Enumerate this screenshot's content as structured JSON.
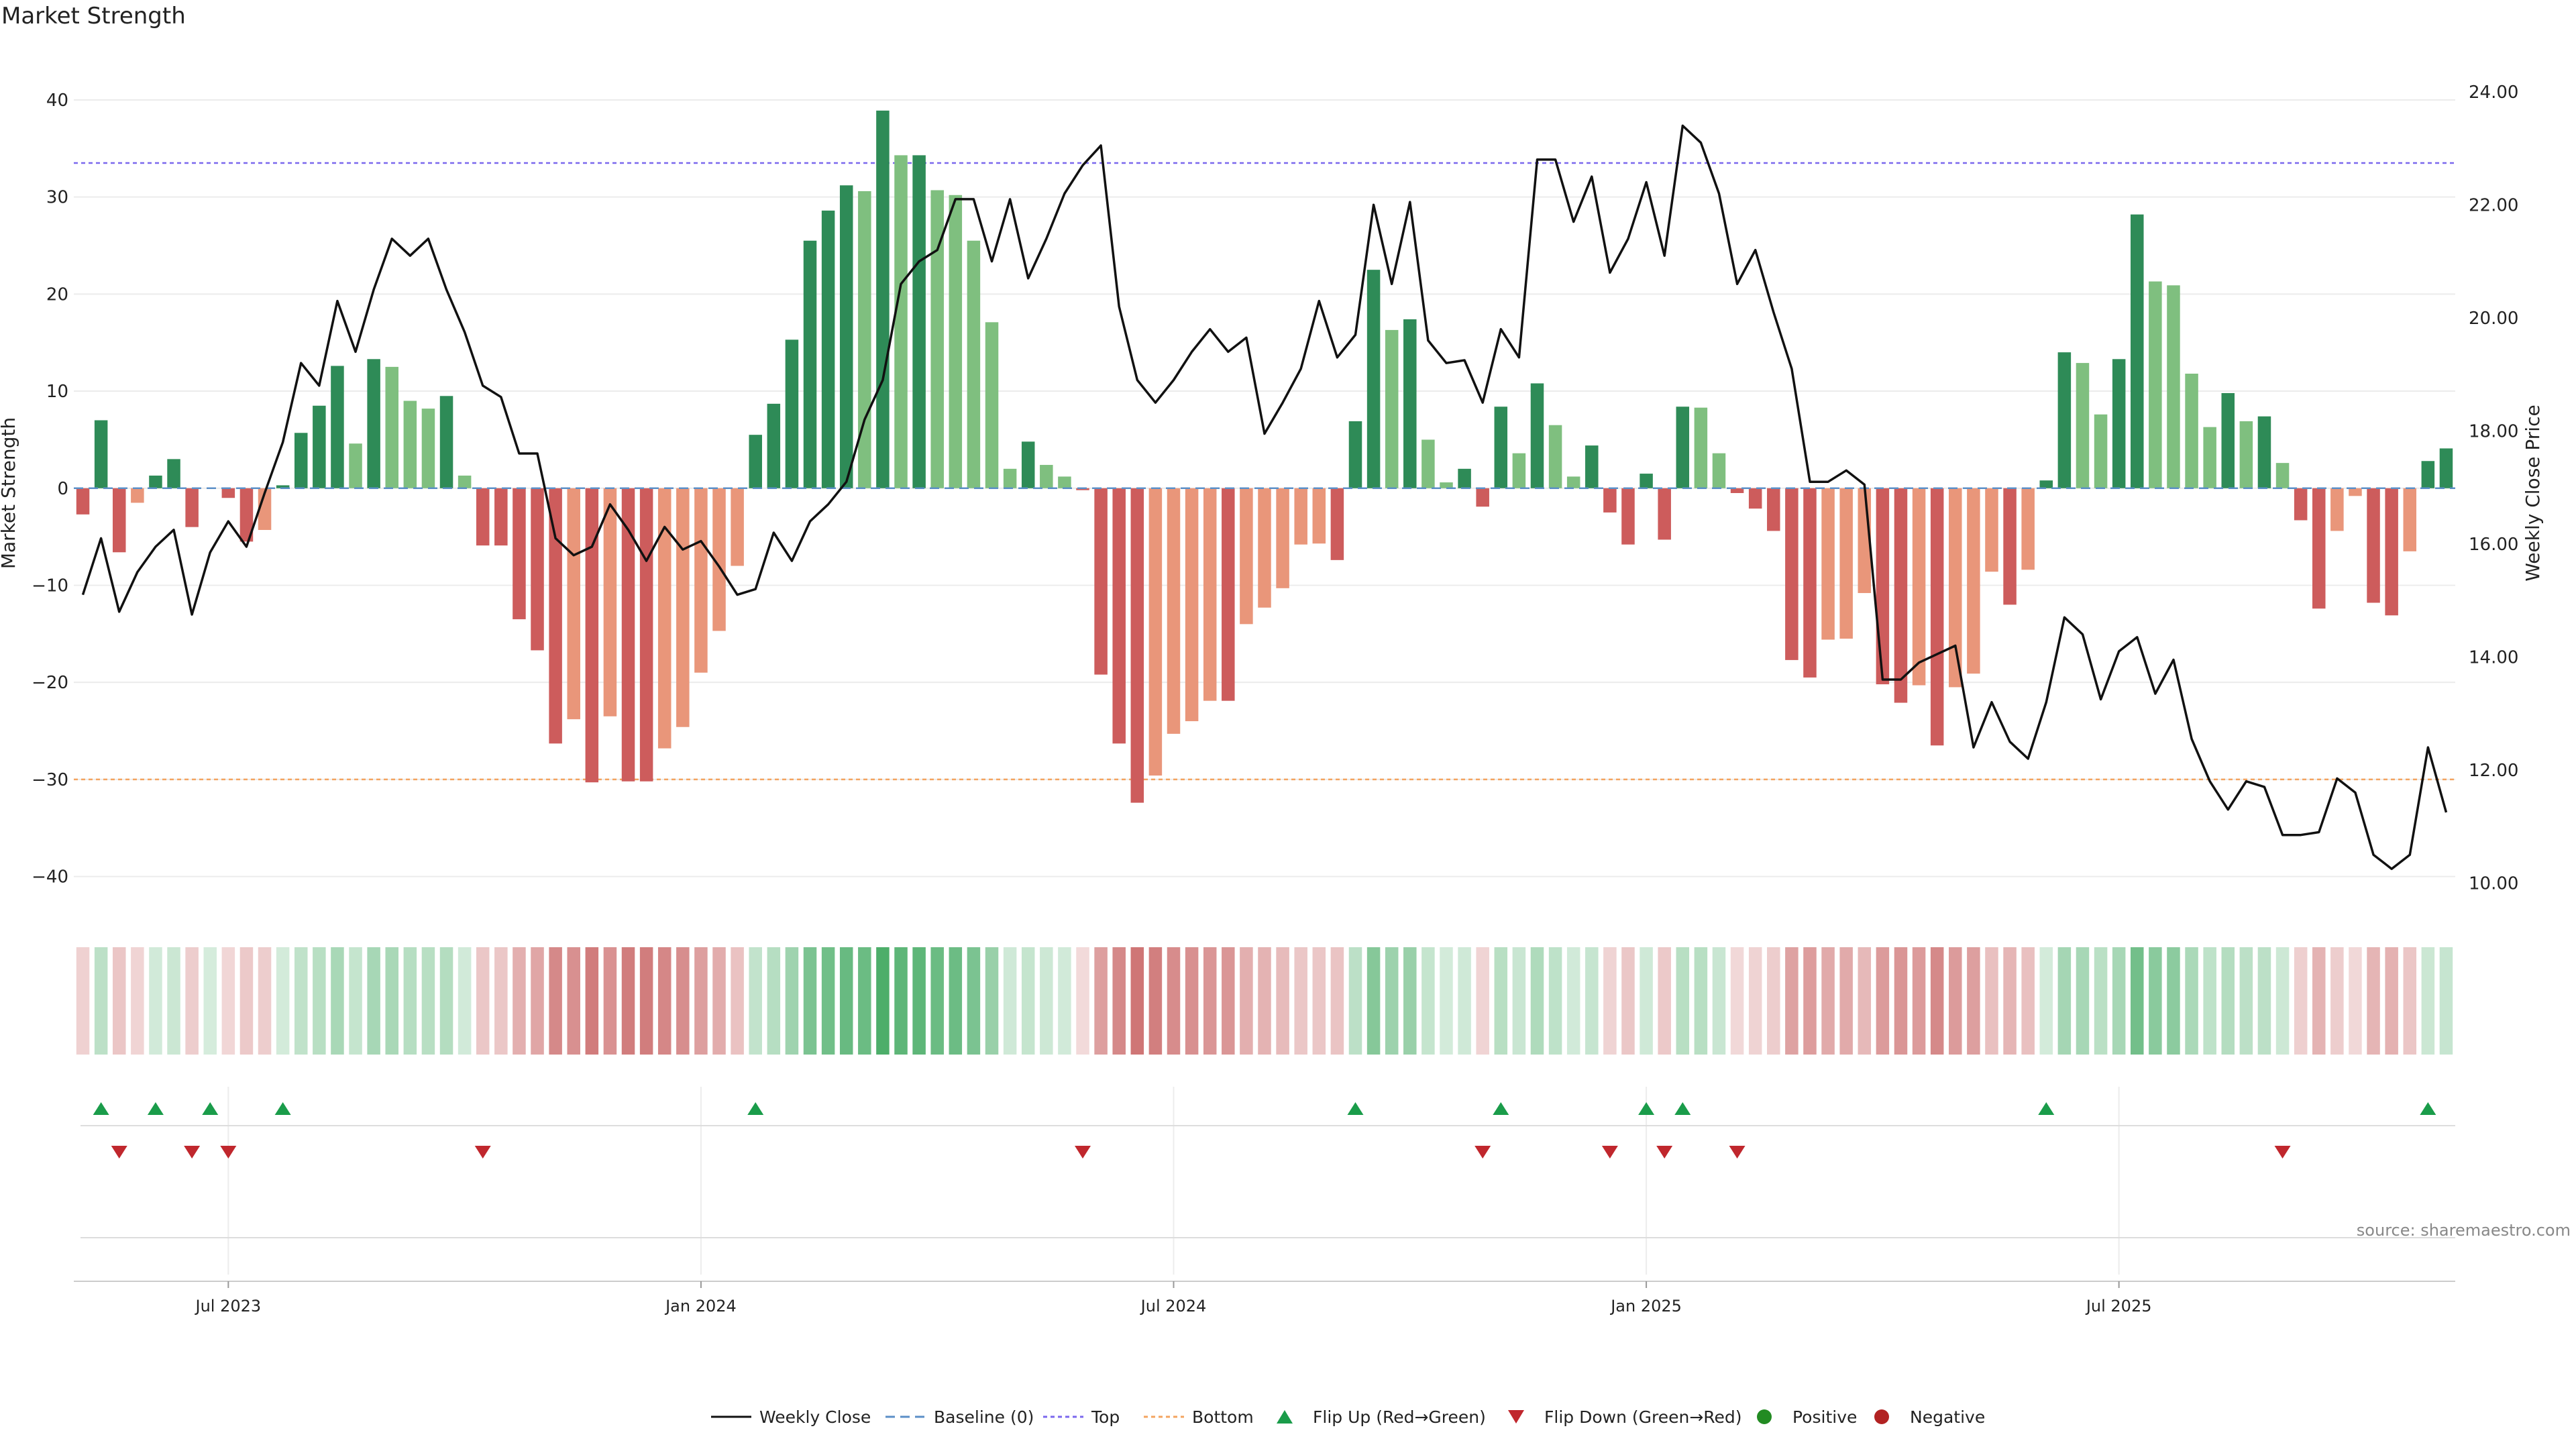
{
  "title": "Market Strength",
  "source": "source: sharemaestro.com",
  "colors": {
    "strong_green": "#2e8b57",
    "light_green": "#7fbf7f",
    "strong_red": "#cd5c5c",
    "light_red": "#e9967a",
    "top_line": "#7b68ee",
    "bottom_line": "#f4a460",
    "baseline": "#5b8fc7",
    "flip_up": "#1a9c4a",
    "flip_down": "#c0272d",
    "price": "#111111"
  },
  "chart_data": {
    "type": "bar",
    "ylabel_left": "Market Strength",
    "ylabel_right": "Weekly Close Price",
    "ylim_left": [
      -43,
      42
    ],
    "ylim_right": [
      9.6,
      24.2
    ],
    "left_ticks": [
      40,
      30,
      20,
      10,
      0,
      -10,
      -20,
      -30,
      -40
    ],
    "left_tick_labels": [
      "40",
      "30",
      "20",
      "10",
      "0",
      "−10",
      "−20",
      "−30",
      "−40"
    ],
    "right_ticks": [
      24,
      22,
      20,
      18,
      16,
      14,
      12,
      10
    ],
    "right_tick_labels": [
      "24.00",
      "22.00",
      "20.00",
      "18.00",
      "16.00",
      "14.00",
      "12.00",
      "10.00"
    ],
    "x_tick_labels": [
      "Jul 2023",
      "Jan 2024",
      "Jul 2024",
      "Jan 2025",
      "Jul 2025"
    ],
    "x_tick_week_index": [
      8,
      34,
      60,
      86,
      112
    ],
    "top_level": 33.5,
    "bottom_level": -30,
    "baseline": 0,
    "grid": true,
    "strength": [
      -2.7,
      7,
      -6.6,
      -1.5,
      1.3,
      3,
      -4,
      0,
      -1,
      -5.5,
      -4.3,
      0.3,
      5.7,
      8.5,
      12.6,
      4.6,
      13.3,
      12.5,
      9,
      8.2,
      9.5,
      1.3,
      -5.9,
      -5.9,
      -13.5,
      -16.7,
      -26.3,
      -23.8,
      -30.3,
      -23.5,
      -30.2,
      -30.2,
      -26.8,
      -24.6,
      -19,
      -14.7,
      -8,
      5.5,
      8.7,
      15.3,
      25.5,
      28.6,
      31.2,
      30.6,
      38.9,
      34.3,
      34.3,
      30.7,
      30.2,
      25.5,
      17.1,
      2,
      4.8,
      2.4,
      1.2,
      -0.2,
      -19.2,
      -26.3,
      -32.4,
      -29.6,
      -25.3,
      -24,
      -21.9,
      -21.9,
      -14,
      -12.3,
      -10.3,
      -5.8,
      -5.7,
      -7.4,
      6.9,
      22.5,
      16.3,
      17.4,
      5,
      0.6,
      2,
      -1.9,
      8.4,
      3.6,
      10.8,
      6.5,
      1.2,
      4.4,
      -2.5,
      -5.8,
      1.5,
      -5.3,
      8.4,
      8.3,
      3.6,
      -0.5,
      -2.1,
      -4.4,
      -17.7,
      -19.5,
      -15.6,
      -15.5,
      -10.8,
      -20.2,
      -22.1,
      -20.3,
      -26.5,
      -20.5,
      -19.1,
      -8.6,
      -12,
      -8.4,
      0.8,
      14,
      12.9,
      7.6,
      13.3,
      28.2,
      21.3,
      20.9,
      11.8,
      6.3,
      9.8,
      6.9,
      7.4,
      2.6,
      -3.3,
      -12.4,
      -4.4,
      -0.8,
      -11.8,
      -13.1,
      -6.5,
      2.8,
      4.1
    ],
    "close": [
      15.1,
      16.1,
      14.8,
      15.5,
      15.95,
      16.25,
      14.75,
      15.85,
      16.4,
      15.95,
      16.9,
      17.8,
      19.2,
      18.8,
      20.3,
      19.4,
      20.5,
      21.4,
      21.1,
      21.4,
      20.5,
      19.75,
      18.8,
      18.6,
      17.6,
      17.6,
      16.1,
      15.8,
      15.95,
      16.7,
      16.25,
      15.7,
      16.3,
      15.9,
      16.05,
      15.6,
      15.1,
      15.2,
      16.2,
      15.7,
      16.4,
      16.7,
      17.1,
      18.2,
      18.9,
      20.6,
      21,
      21.2,
      22.1,
      22.1,
      21,
      22.1,
      20.7,
      21.4,
      22.2,
      22.7,
      23.05,
      20.2,
      18.9,
      18.5,
      18.9,
      19.4,
      19.8,
      19.4,
      19.65,
      17.95,
      18.5,
      19.1,
      20.3,
      19.3,
      19.7,
      22,
      20.6,
      22.05,
      19.6,
      19.2,
      19.25,
      18.5,
      19.8,
      19.3,
      22.8,
      22.8,
      21.7,
      22.5,
      20.8,
      21.4,
      22.4,
      21.1,
      23.4,
      23.1,
      22.2,
      20.6,
      21.2,
      20.1,
      19.1,
      17.1,
      17.1,
      17.3,
      17.05,
      13.6,
      13.6,
      13.9,
      14.05,
      14.2,
      12.4,
      13.2,
      12.5,
      12.2,
      13.2,
      14.7,
      14.4,
      13.25,
      14.1,
      14.35,
      13.35,
      13.95,
      12.55,
      11.8,
      11.3,
      11.8,
      11.7,
      10.85,
      10.85,
      10.9,
      11.85,
      11.6,
      10.5,
      10.25,
      10.5,
      12.4,
      11.25
    ],
    "flip_up_weeks": [
      1,
      4,
      7,
      11,
      37,
      70,
      78,
      86,
      88,
      108,
      129
    ],
    "flip_down_weeks": [
      2,
      6,
      8,
      22,
      55,
      77,
      84,
      87,
      91,
      121
    ],
    "legend": [
      "Weekly Close",
      "Baseline (0)",
      "Top",
      "Bottom",
      "Flip Up (Red→Green)",
      "Flip Down (Green→Red)",
      "Positive",
      "Negative"
    ],
    "legend_placement": "bottom-center"
  }
}
